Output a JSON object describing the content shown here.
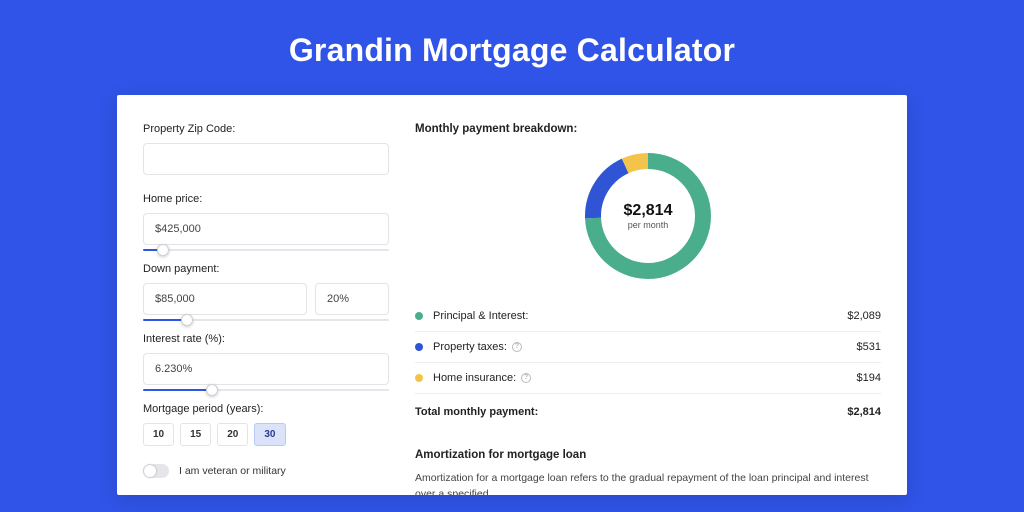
{
  "page": {
    "title": "Grandin Mortgage Calculator",
    "background_color": "#3054e8",
    "card_background": "#ffffff"
  },
  "form": {
    "zip": {
      "label": "Property Zip Code:",
      "value": ""
    },
    "price": {
      "label": "Home price:",
      "value": "$425,000",
      "slider_pct": 8
    },
    "down": {
      "label": "Down payment:",
      "amount": "$85,000",
      "percent": "20%",
      "slider_pct": 18
    },
    "rate": {
      "label": "Interest rate (%):",
      "value": "6.230%",
      "slider_pct": 28
    },
    "period": {
      "label": "Mortgage period (years):",
      "options": [
        "10",
        "15",
        "20",
        "30"
      ],
      "selected_index": 3
    },
    "veteran": {
      "label": "I am veteran or military",
      "checked": false
    }
  },
  "breakdown": {
    "title": "Monthly payment breakdown:",
    "donut": {
      "center_amount": "$2,814",
      "center_sub": "per month",
      "series": [
        {
          "key": "pi",
          "color": "#4aae8c",
          "pct": 74.3
        },
        {
          "key": "tax",
          "color": "#2f55d4",
          "pct": 18.8
        },
        {
          "key": "ins",
          "color": "#f3c44b",
          "pct": 6.9
        }
      ],
      "stroke_width": 16,
      "radius": 55,
      "size": 126
    },
    "rows": [
      {
        "dot": "#4aae8c",
        "label": "Principal & Interest:",
        "info": false,
        "value": "$2,089"
      },
      {
        "dot": "#2f55d4",
        "label": "Property taxes:",
        "info": true,
        "value": "$531"
      },
      {
        "dot": "#f3c44b",
        "label": "Home insurance:",
        "info": true,
        "value": "$194"
      }
    ],
    "total": {
      "label": "Total monthly payment:",
      "value": "$2,814"
    }
  },
  "amortization": {
    "title": "Amortization for mortgage loan",
    "text": "Amortization for a mortgage loan refers to the gradual repayment of the loan principal and interest over a specified"
  }
}
